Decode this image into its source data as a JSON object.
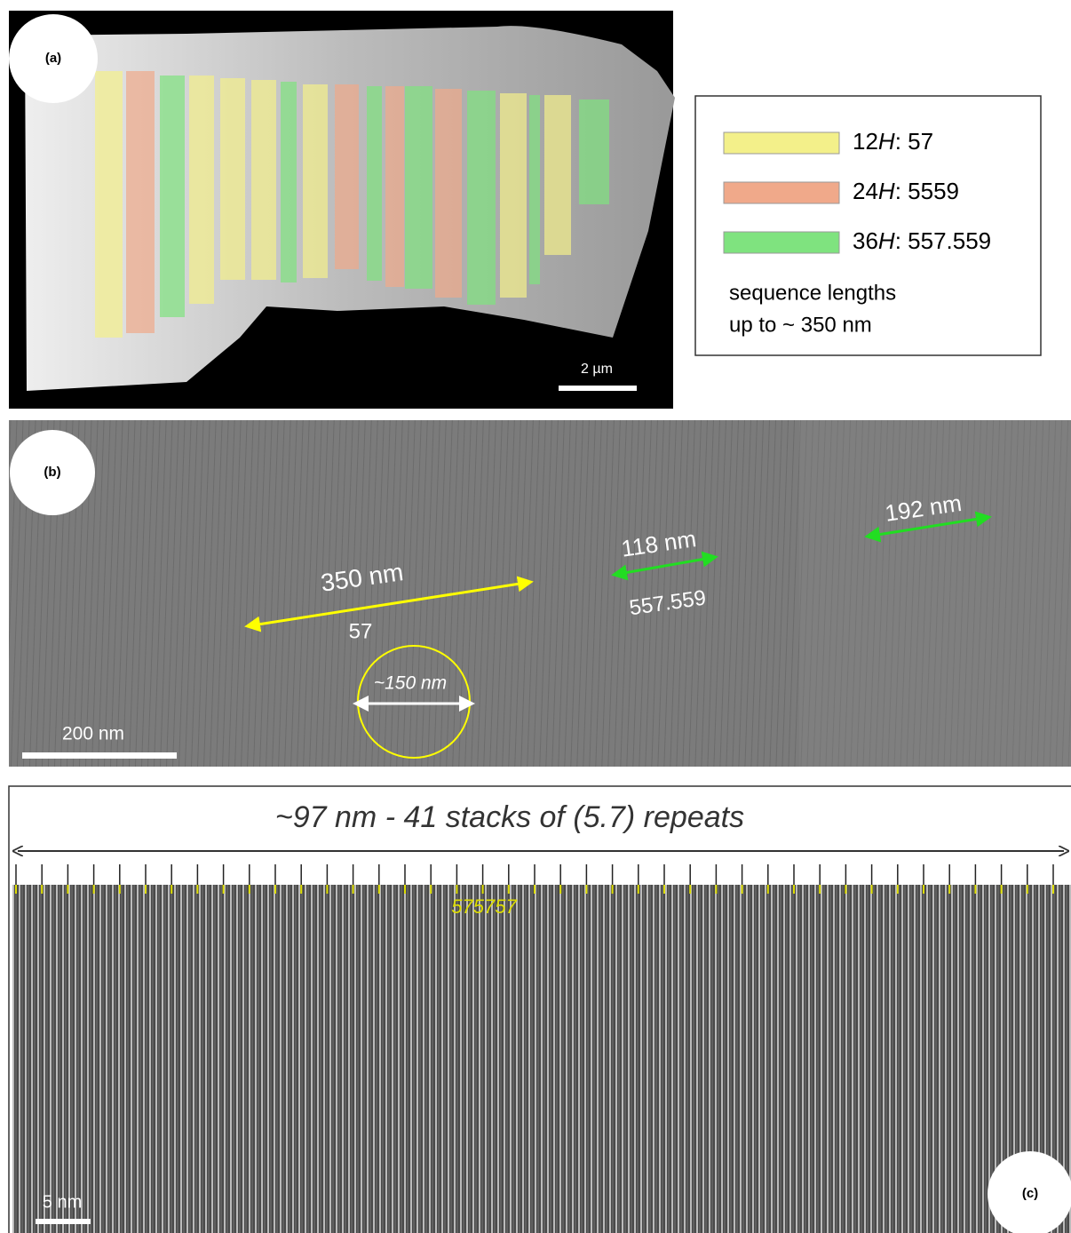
{
  "panel_a": {
    "label": "(a)",
    "scale_bar": "2 µm",
    "legend": {
      "items": [
        {
          "prefix": "12",
          "italic": "H",
          "suffix": ": 57"
        },
        {
          "prefix": "24",
          "italic": "H",
          "suffix": ": 5559"
        },
        {
          "prefix": "36",
          "italic": "H",
          "suffix": ": 557.559"
        }
      ],
      "note": [
        "sequence lengths",
        "up to ~ 350 nm"
      ]
    }
  },
  "panel_b": {
    "label": "(b)",
    "scale_bar": "200 nm",
    "annotations": {
      "yellow_length": "350 nm",
      "yellow_sequence": "57",
      "green1_length": "118 nm",
      "green1_sequence": "557.559",
      "green2_length": "192 nm",
      "circle_diameter": "~150 nm"
    }
  },
  "panel_c": {
    "label": "(c)",
    "title": "~97 nm - 41 stacks of (5.7) repeats",
    "sequence": "575757",
    "scale_bar": "5 nm"
  }
}
